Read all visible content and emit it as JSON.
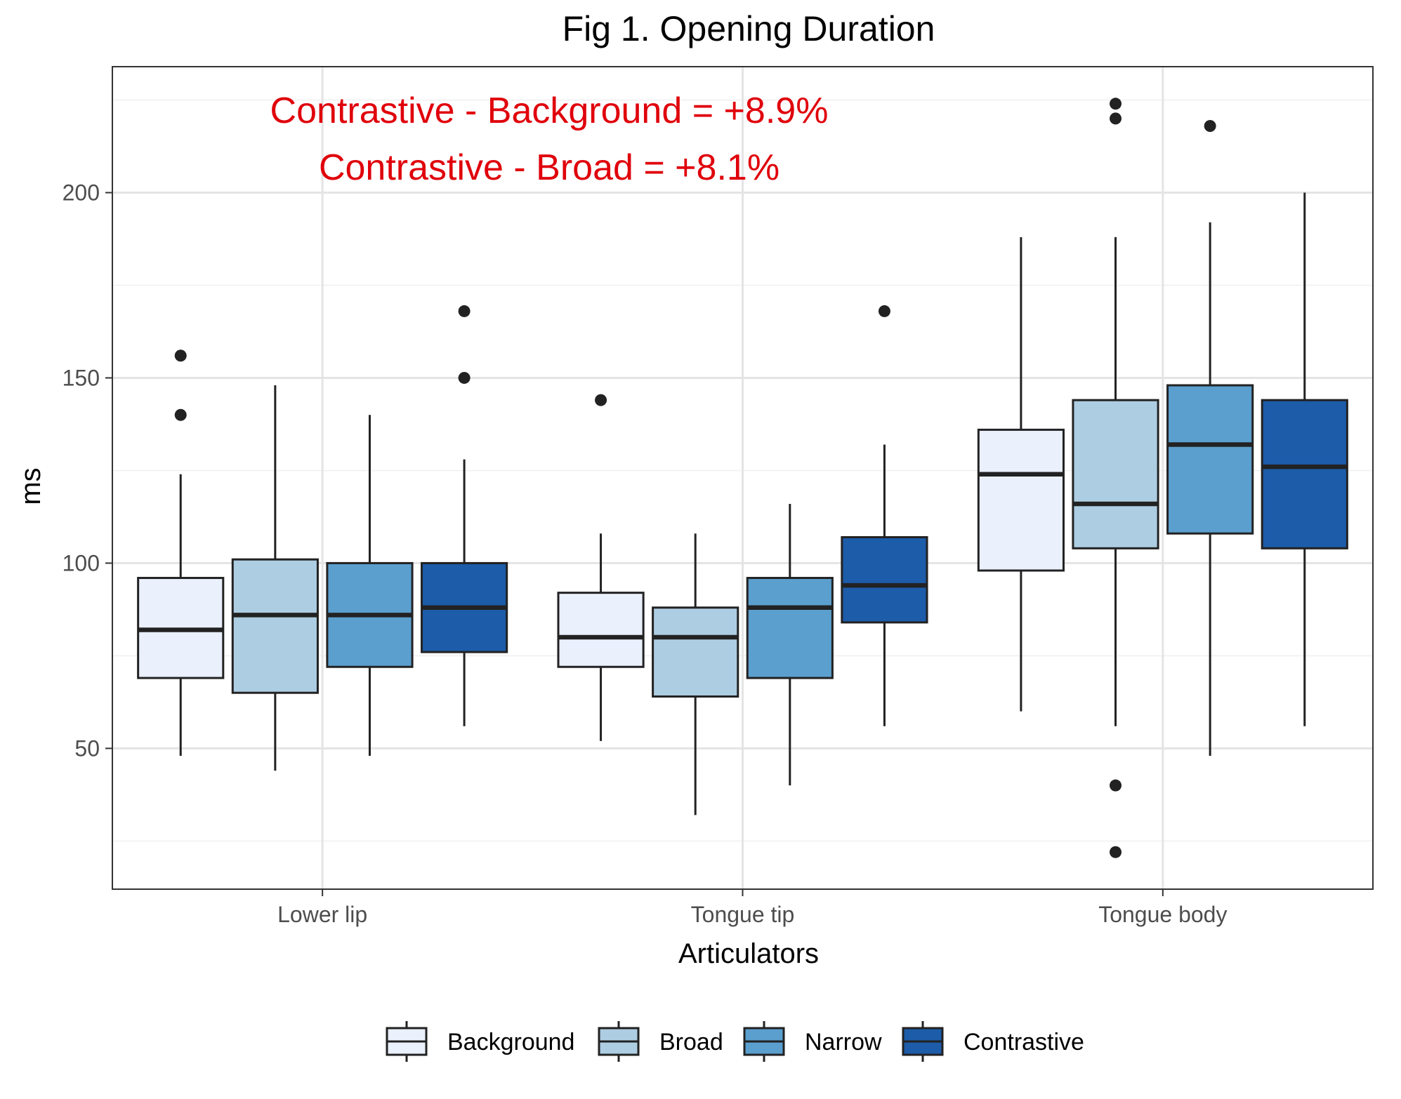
{
  "chart_data": {
    "type": "boxplot",
    "title": "Fig 1. Opening Duration",
    "xlabel": "Articulators",
    "ylabel": "ms",
    "ylim": [
      12,
      234
    ],
    "yticks": [
      50,
      100,
      150,
      200
    ],
    "grid": true,
    "legend_position": "bottom",
    "categories": [
      "Lower lip",
      "Tongue tip",
      "Tongue body"
    ],
    "series": [
      {
        "name": "Background",
        "color": "#eaf0fc",
        "boxes": [
          {
            "min": 48,
            "q1": 69,
            "median": 82,
            "q3": 96,
            "max": 124,
            "outliers": [
              140,
              156
            ]
          },
          {
            "min": 52,
            "q1": 72,
            "median": 80,
            "q3": 92,
            "max": 108,
            "outliers": [
              144
            ]
          },
          {
            "min": 60,
            "q1": 98,
            "median": 124,
            "q3": 136,
            "max": 188,
            "outliers": []
          }
        ]
      },
      {
        "name": "Broad",
        "color": "#adcde2",
        "boxes": [
          {
            "min": 44,
            "q1": 65,
            "median": 86,
            "q3": 101,
            "max": 148,
            "outliers": []
          },
          {
            "min": 32,
            "q1": 64,
            "median": 80,
            "q3": 88,
            "max": 108,
            "outliers": []
          },
          {
            "min": 56,
            "q1": 104,
            "median": 116,
            "q3": 144,
            "max": 188,
            "outliers": [
              22,
              40,
              220,
              224
            ]
          }
        ]
      },
      {
        "name": "Narrow",
        "color": "#5b9fce",
        "boxes": [
          {
            "min": 48,
            "q1": 72,
            "median": 86,
            "q3": 100,
            "max": 140,
            "outliers": []
          },
          {
            "min": 40,
            "q1": 69,
            "median": 88,
            "q3": 96,
            "max": 116,
            "outliers": []
          },
          {
            "min": 48,
            "q1": 108,
            "median": 132,
            "q3": 148,
            "max": 192,
            "outliers": [
              218
            ]
          }
        ]
      },
      {
        "name": "Contrastive",
        "color": "#1c5ca9",
        "boxes": [
          {
            "min": 56,
            "q1": 76,
            "median": 88,
            "q3": 100,
            "max": 128,
            "outliers": [
              150,
              168
            ]
          },
          {
            "min": 56,
            "q1": 84,
            "median": 94,
            "q3": 107,
            "max": 132,
            "outliers": [
              168
            ]
          },
          {
            "min": 56,
            "q1": 104,
            "median": 126,
            "q3": 144,
            "max": 200,
            "outliers": []
          }
        ]
      }
    ],
    "annotations": [
      {
        "text": "Contrastive - Background = +8.9%",
        "color": "#e0000b"
      },
      {
        "text": "Contrastive - Broad = +8.1%",
        "color": "#e0000b"
      }
    ]
  }
}
